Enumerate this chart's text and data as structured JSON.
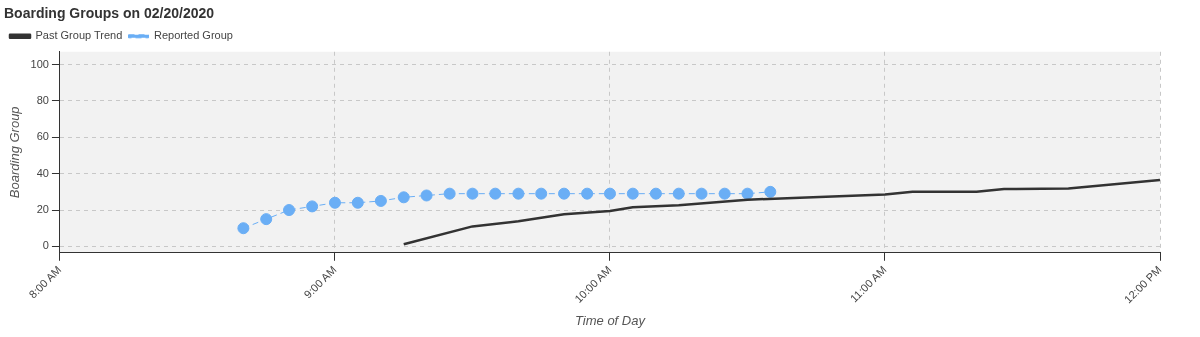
{
  "chart_data": {
    "type": "line",
    "title": "Boarding Groups on 02/20/2020",
    "xlabel": "Time of Day",
    "ylabel": "Boarding Group",
    "xlim": [
      8,
      12
    ],
    "xticks": [
      {
        "value": 8,
        "label": "8:00 AM"
      },
      {
        "value": 9,
        "label": "9:00 AM"
      },
      {
        "value": 10,
        "label": "10:00 AM"
      },
      {
        "value": 11,
        "label": "11:00 AM"
      },
      {
        "value": 12,
        "label": "12:00 PM"
      }
    ],
    "ylim": [
      -3.5,
      107
    ],
    "yticks": [
      0,
      20,
      40,
      60,
      80,
      100
    ],
    "grid": true,
    "legend": "top left",
    "series": [
      {
        "name": "Past Group Trend",
        "color": "#333333",
        "marker": "none",
        "line_style": "solid",
        "x": [
          9.25,
          9.5,
          9.667,
          9.833,
          10,
          10.083,
          10.25,
          10.5,
          10.667,
          11,
          11.1,
          11.333,
          11.433,
          11.667,
          12
        ],
        "values": [
          1.2,
          11,
          13.8,
          17.7,
          19.5,
          21.5,
          22.6,
          25.7,
          26.6,
          28.5,
          30,
          30,
          31.5,
          31.8,
          36.5
        ]
      },
      {
        "name": "Reported Group",
        "color": "#6aaef5",
        "marker": "circle",
        "line_style": "dashed",
        "x": [
          8.667,
          8.75,
          8.833,
          8.917,
          9,
          9.083,
          9.167,
          9.25,
          9.333,
          9.417,
          9.5,
          9.583,
          9.667,
          9.75,
          9.833,
          9.917,
          10,
          10.083,
          10.167,
          10.25,
          10.333,
          10.417,
          10.5,
          10.583
        ],
        "values": [
          10,
          15,
          20,
          22,
          24,
          24,
          25,
          27,
          28,
          29,
          29,
          29,
          29,
          29,
          29,
          29,
          29,
          29,
          29,
          29,
          29,
          29,
          29,
          30
        ]
      }
    ]
  }
}
